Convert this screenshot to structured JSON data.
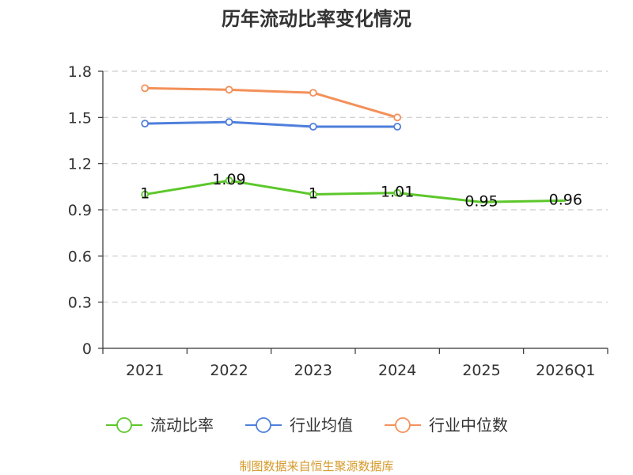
{
  "chart_data": {
    "type": "line",
    "title": "历年流动比率变化情况",
    "categories": [
      "2021",
      "2022",
      "2023",
      "2024",
      "2025",
      "2026Q1"
    ],
    "y_ticks": [
      "0",
      "0.3",
      "0.6",
      "0.9",
      "1.2",
      "1.5",
      "1.8"
    ],
    "ylim": [
      0,
      1.8
    ],
    "grid": true,
    "legend_position": "bottom",
    "series": [
      {
        "name": "流动比率",
        "color": "#5cc72a",
        "values": [
          1.0,
          1.09,
          1.0,
          1.01,
          0.95,
          0.96
        ],
        "labels": [
          "1",
          "1.09",
          "1",
          "1.01",
          "0.95",
          "0.96"
        ],
        "markers": [
          true,
          true,
          true,
          true,
          false,
          false
        ]
      },
      {
        "name": "行业均值",
        "color": "#4f7fdc",
        "values": [
          1.46,
          1.47,
          1.44,
          1.44,
          null,
          null
        ],
        "markers": [
          true,
          true,
          true,
          true,
          false,
          false
        ]
      },
      {
        "name": "行业中位数",
        "color": "#f39059",
        "values": [
          1.69,
          1.68,
          1.66,
          1.5,
          null,
          null
        ],
        "markers": [
          true,
          true,
          true,
          true,
          false,
          false
        ]
      }
    ],
    "source": "制图数据来自恒生聚源数据库"
  }
}
